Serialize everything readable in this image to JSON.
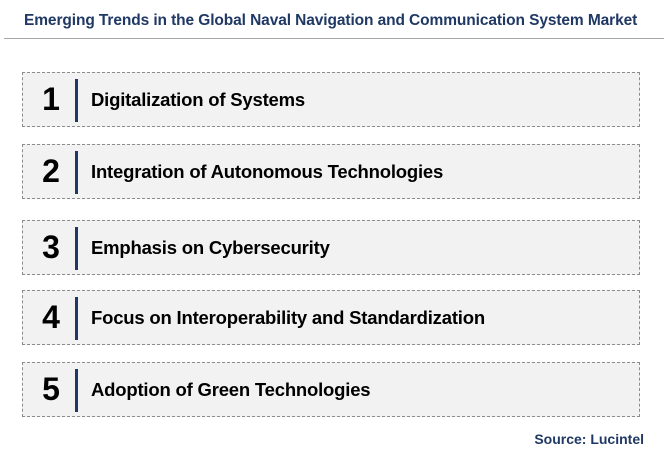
{
  "title": "Emerging Trends in the Global Naval Navigation and Communication System Market",
  "trends": [
    {
      "number": "1",
      "label": "Digitalization of Systems"
    },
    {
      "number": "2",
      "label": "Integration of Autonomous Technologies"
    },
    {
      "number": "3",
      "label": "Emphasis on Cybersecurity"
    },
    {
      "number": "4",
      "label": "Focus on Interoperability and Standardization"
    },
    {
      "number": "5",
      "label": "Adoption of Green Technologies"
    }
  ],
  "source": "Source: Lucintel",
  "colors": {
    "title": "#1f3864",
    "divider": "#1f3864",
    "box_background": "#f2f2f2",
    "box_border": "#8c8c8c"
  }
}
